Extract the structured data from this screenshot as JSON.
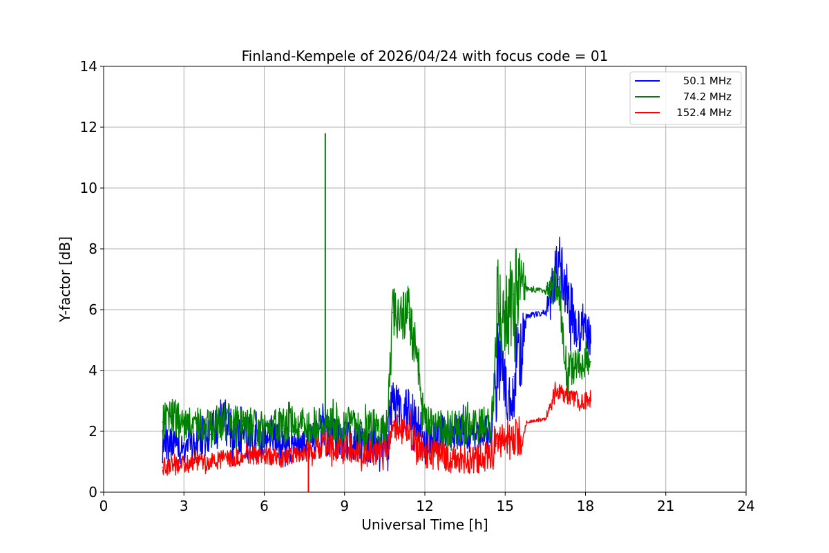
{
  "chart_data": {
    "type": "line",
    "title": "Finland-Kempele of 2026/04/24 with focus code = 01",
    "xlabel": "Universal Time [h]",
    "ylabel": "Y-factor [dB]",
    "xlim": [
      0,
      24
    ],
    "ylim": [
      0,
      14
    ],
    "xticks": [
      0,
      3,
      6,
      9,
      12,
      15,
      18,
      21,
      24
    ],
    "yticks": [
      0,
      2,
      4,
      6,
      8,
      10,
      12,
      14
    ],
    "grid": true,
    "legend_position": "top-right",
    "series": [
      {
        "name": "50.1 MHz",
        "color": "#0000ff",
        "x": [
          2.2,
          2.6,
          3.0,
          3.5,
          4.0,
          4.5,
          4.8,
          5.2,
          5.7,
          6.2,
          6.7,
          7.2,
          7.6,
          8.0,
          8.3,
          8.7,
          9.2,
          9.7,
          10.2,
          10.6,
          10.8,
          11.0,
          11.4,
          12.0,
          12.5,
          13.0,
          13.5,
          14.0,
          14.5,
          14.7,
          15.0,
          15.3,
          15.6,
          15.8,
          16.5,
          16.8,
          17.0,
          17.3,
          17.6,
          17.9,
          18.2
        ],
        "y": [
          1.5,
          1.6,
          1.5,
          1.7,
          1.9,
          2.4,
          2.0,
          1.8,
          1.6,
          1.8,
          1.6,
          1.5,
          1.7,
          1.8,
          2.0,
          1.8,
          1.7,
          1.6,
          1.5,
          1.6,
          3.0,
          2.5,
          2.8,
          1.8,
          1.9,
          2.0,
          1.9,
          1.8,
          2.0,
          4.0,
          3.5,
          3.8,
          4.6,
          5.8,
          5.9,
          6.9,
          7.6,
          6.6,
          5.5,
          5.4,
          4.9
        ],
        "band": [
          0.6,
          0.6,
          0.6,
          0.6,
          0.7,
          0.8,
          0.8,
          0.7,
          0.7,
          0.6,
          0.6,
          0.6,
          0.6,
          0.6,
          0.8,
          0.7,
          0.6,
          0.6,
          0.6,
          0.6,
          1.0,
          0.9,
          0.8,
          0.6,
          0.6,
          0.6,
          0.6,
          0.6,
          0.6,
          1.6,
          1.3,
          1.4,
          1.3,
          0.1,
          0.1,
          0.9,
          0.9,
          1.0,
          0.9,
          0.8,
          0.8
        ]
      },
      {
        "name": "74.2 MHz",
        "color": "#008000",
        "x": [
          2.2,
          2.6,
          3.0,
          3.5,
          4.0,
          4.5,
          4.8,
          5.2,
          5.7,
          6.2,
          6.7,
          7.2,
          7.6,
          8.0,
          8.3,
          8.7,
          9.2,
          9.7,
          10.2,
          10.6,
          10.8,
          11.0,
          11.4,
          12.0,
          12.5,
          13.0,
          13.5,
          14.0,
          14.5,
          14.7,
          15.0,
          15.3,
          15.6,
          15.8,
          16.5,
          16.8,
          17.0,
          17.3,
          17.6,
          17.9,
          18.2
        ],
        "y": [
          2.3,
          2.5,
          2.2,
          2.3,
          2.1,
          2.4,
          2.3,
          2.2,
          2.1,
          2.1,
          2.2,
          2.3,
          2.1,
          2.2,
          2.3,
          2.1,
          2.2,
          2.0,
          2.2,
          2.1,
          5.9,
          5.7,
          5.9,
          2.3,
          2.1,
          2.1,
          2.1,
          2.2,
          2.3,
          6.2,
          5.3,
          6.5,
          6.9,
          6.7,
          6.6,
          6.8,
          7.0,
          3.8,
          4.2,
          4.2,
          4.3
        ],
        "band": [
          0.6,
          0.6,
          0.6,
          0.6,
          0.6,
          0.7,
          0.6,
          0.6,
          0.6,
          0.6,
          0.6,
          0.6,
          0.6,
          0.6,
          0.6,
          0.6,
          0.6,
          0.6,
          0.6,
          0.6,
          0.9,
          0.8,
          0.9,
          0.6,
          0.6,
          0.6,
          0.6,
          0.6,
          0.6,
          1.6,
          1.2,
          1.5,
          1.2,
          0.1,
          0.1,
          0.6,
          0.8,
          0.7,
          0.6,
          0.5,
          0.5
        ]
      },
      {
        "name": "152.4 MHz",
        "color": "#ff0000",
        "x": [
          2.2,
          2.6,
          3.0,
          3.5,
          4.0,
          4.5,
          4.8,
          5.2,
          5.7,
          6.2,
          6.7,
          7.2,
          7.6,
          8.0,
          8.3,
          8.7,
          9.2,
          9.7,
          10.2,
          10.6,
          10.8,
          11.0,
          11.4,
          12.0,
          12.5,
          13.0,
          13.5,
          14.0,
          14.5,
          14.7,
          15.0,
          15.3,
          15.6,
          15.8,
          16.5,
          16.8,
          17.0,
          17.3,
          17.6,
          17.9,
          18.2
        ],
        "y": [
          0.8,
          0.9,
          0.9,
          1.0,
          1.0,
          1.1,
          1.1,
          1.2,
          1.2,
          1.2,
          1.1,
          1.3,
          1.3,
          1.5,
          1.6,
          1.4,
          1.4,
          1.2,
          1.3,
          1.4,
          2.3,
          2.1,
          2.0,
          1.3,
          1.2,
          1.1,
          1.0,
          1.1,
          1.2,
          1.6,
          1.7,
          1.8,
          1.7,
          2.3,
          2.4,
          3.1,
          3.3,
          3.2,
          3.1,
          3.0,
          3.0
        ],
        "band": [
          0.3,
          0.3,
          0.3,
          0.3,
          0.3,
          0.3,
          0.3,
          0.3,
          0.3,
          0.3,
          0.3,
          0.3,
          0.3,
          0.4,
          0.5,
          0.4,
          0.4,
          0.4,
          0.4,
          0.4,
          0.5,
          0.5,
          0.5,
          0.5,
          0.5,
          0.5,
          0.5,
          0.5,
          0.6,
          0.7,
          0.6,
          0.7,
          0.5,
          0.05,
          0.05,
          0.3,
          0.3,
          0.3,
          0.3,
          0.3,
          0.3
        ]
      }
    ],
    "annotations": [
      {
        "series": "74.2 MHz",
        "x": 8.28,
        "y": 11.8,
        "kind": "spike"
      },
      {
        "series": "152.4 MHz",
        "x": 7.65,
        "y": 0.0,
        "kind": "dropout"
      }
    ]
  }
}
